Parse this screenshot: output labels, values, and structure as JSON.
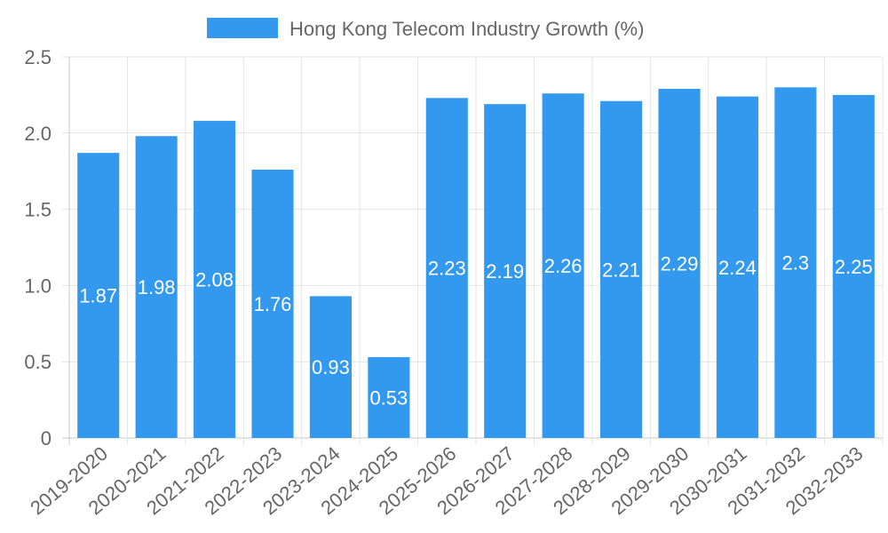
{
  "chart_data": {
    "type": "bar",
    "title": "",
    "xlabel": "",
    "ylabel": "",
    "categories": [
      "2019-2020",
      "2020-2021",
      "2021-2022",
      "2022-2023",
      "2023-2024",
      "2024-2025",
      "2025-2026",
      "2026-2027",
      "2027-2028",
      "2028-2029",
      "2029-2030",
      "2030-2031",
      "2031-2032",
      "2032-2033"
    ],
    "series": [
      {
        "name": "Hong Kong Telecom Industry Growth (%)",
        "color": "#3399ee",
        "values": [
          1.87,
          1.98,
          2.08,
          1.76,
          0.93,
          0.53,
          2.23,
          2.19,
          2.26,
          2.21,
          2.29,
          2.24,
          2.3,
          2.25
        ],
        "labels": [
          "1.87",
          "1.98",
          "2.08",
          "1.76",
          "0.93",
          "0.53",
          "2.23",
          "2.19",
          "2.26",
          "2.21",
          "2.29",
          "2.24",
          "2.3",
          "2.25"
        ]
      }
    ],
    "ylim": [
      0,
      2.5
    ],
    "yticks": [
      "0",
      "0.5",
      "1.0",
      "1.5",
      "2.0",
      "2.5"
    ],
    "ytick_values": [
      0,
      0.5,
      1.0,
      1.5,
      2.0,
      2.5
    ],
    "legend_position": "top-center",
    "grid": true
  }
}
